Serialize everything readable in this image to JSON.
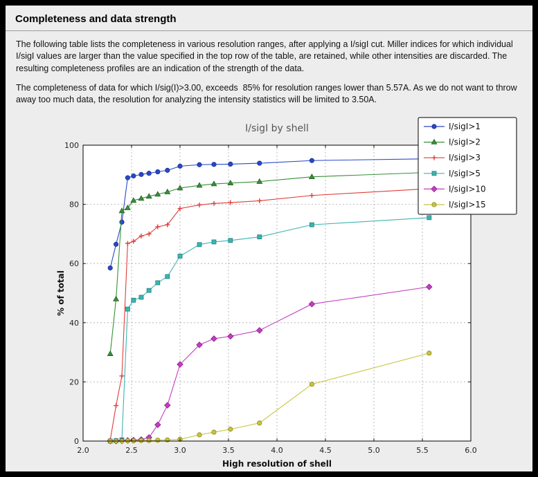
{
  "page": {
    "title": "Completeness and data strength",
    "paragraph1": "The following table lists the completeness in various resolution ranges, after applying a I/sigI cut. Miller indices for which individual I/sigI values are larger than the value specified in the top row of the table, are retained, while other intensities are discarded. The resulting completeness profiles are an indication of the strength of the data.",
    "paragraph2": "The completeness of data for which I/sig(I)>3.00, exceeds  85% for resolution ranges lower than 5.57A. As we do not want to throw away too much data, the resolution for analyzing the intensity statistics will be limited to 3.50A."
  },
  "chart_data": {
    "type": "line",
    "title": "I/sigI by shell",
    "xlabel": "High resolution of shell",
    "ylabel": "% of total",
    "xlim": [
      2.0,
      6.0
    ],
    "ylim": [
      0,
      100
    ],
    "xticks": [
      2.0,
      2.5,
      3.0,
      3.5,
      4.0,
      4.5,
      5.0,
      5.5,
      6.0
    ],
    "yticks": [
      0,
      20,
      40,
      60,
      80,
      100
    ],
    "grid": true,
    "legend_position": "upper right",
    "colors": {
      "figure_background": "#ededed",
      "plot_background": "#ffffff",
      "grid_color": "#aaaaaa",
      "title_color": "#555555"
    },
    "x": [
      2.28,
      2.34,
      2.4,
      2.46,
      2.52,
      2.6,
      2.68,
      2.77,
      2.87,
      3.0,
      3.2,
      3.35,
      3.52,
      3.82,
      4.36,
      5.57
    ],
    "series": [
      {
        "name": "I/sigI>1",
        "color": "#2848c8",
        "edge": "#1c3390",
        "marker": "circle",
        "values": [
          58.5,
          66.5,
          74.0,
          89.0,
          89.6,
          90.1,
          90.5,
          91.0,
          91.5,
          92.9,
          93.4,
          93.5,
          93.6,
          93.9,
          94.8,
          95.4
        ]
      },
      {
        "name": "I/sigI>2",
        "color": "#379037",
        "edge": "#246024",
        "marker": "triangle",
        "values": [
          29.5,
          48.0,
          77.8,
          78.8,
          81.3,
          82.0,
          82.7,
          83.4,
          84.2,
          85.5,
          86.4,
          86.9,
          87.2,
          87.7,
          89.3,
          90.8
        ]
      },
      {
        "name": "I/sigI>3",
        "color": "#e03c38",
        "edge": "#a02220",
        "marker": "plus",
        "values": [
          0.3,
          12.0,
          22.0,
          66.8,
          67.5,
          69.3,
          70.0,
          72.4,
          73.1,
          78.6,
          79.8,
          80.3,
          80.6,
          81.2,
          83.0,
          85.3
        ]
      },
      {
        "name": "I/sigI>5",
        "color": "#3cb4b0",
        "edge": "#20807d",
        "marker": "square",
        "values": [
          0.0,
          0.1,
          0.4,
          44.6,
          47.6,
          48.6,
          50.9,
          53.5,
          55.6,
          62.5,
          66.4,
          67.3,
          67.8,
          69.0,
          73.1,
          75.5
        ]
      },
      {
        "name": "I/sigI>10",
        "color": "#c43cc4",
        "edge": "#8a248a",
        "marker": "diamond",
        "values": [
          0.0,
          0.0,
          0.1,
          0.2,
          0.3,
          0.5,
          1.2,
          5.5,
          12.1,
          25.9,
          32.5,
          34.6,
          35.4,
          37.4,
          46.3,
          52.1
        ]
      },
      {
        "name": "I/sigI>15",
        "color": "#c8c33c",
        "edge": "#8f8a22",
        "marker": "circle",
        "values": [
          0.0,
          0.0,
          0.0,
          0.1,
          0.1,
          0.2,
          0.2,
          0.3,
          0.4,
          0.6,
          2.1,
          3.0,
          4.0,
          6.1,
          19.2,
          29.7
        ]
      }
    ]
  }
}
